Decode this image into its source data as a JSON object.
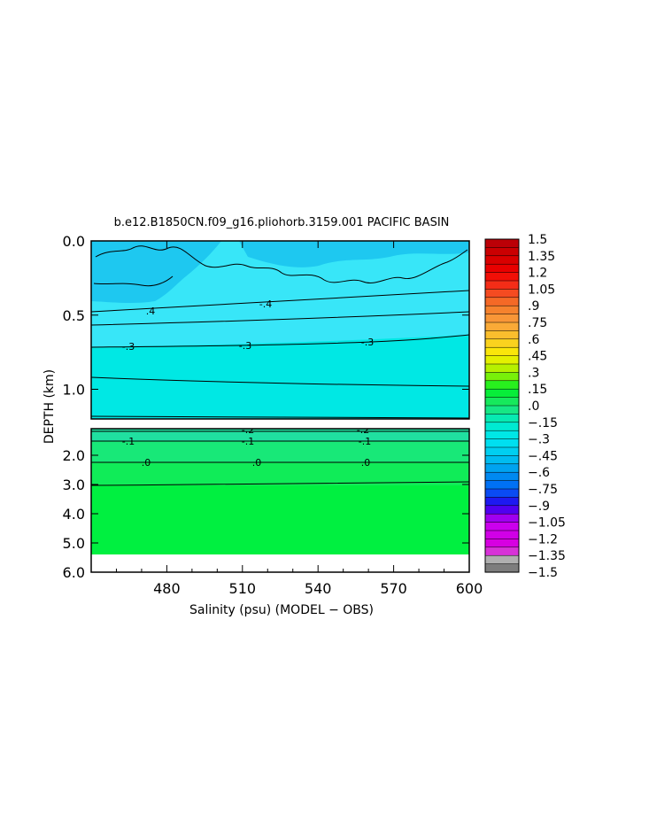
{
  "chart_data": {
    "type": "heatmap",
    "title": "b.e12.B1850CN.f09_g16.pliohorb.3159.001 PACIFIC BASIN",
    "xlabel": "Salinity (psu) (MODEL − OBS)",
    "ylabel": "DEPTH (km)",
    "x_ticks": [
      "480",
      "510",
      "540",
      "570",
      "600"
    ],
    "x_tick_values": [
      480,
      510,
      540,
      570,
      600
    ],
    "xlim": [
      450,
      600
    ],
    "upper_panel": {
      "ylim": [
        0.0,
        1.2
      ],
      "y_ticks": [
        "0.0",
        "0.5",
        "1.0"
      ],
      "y_tick_values": [
        0.0,
        0.5,
        1.0
      ]
    },
    "lower_panel": {
      "ylim": [
        1.2,
        6.0
      ],
      "y_ticks": [
        "2.0",
        "3.0",
        "4.0",
        "5.0",
        "6.0"
      ],
      "y_tick_values": [
        2.0,
        3.0,
        4.0,
        5.0,
        6.0
      ],
      "data_max_depth": 5.4
    },
    "contours": [
      {
        "label": ".4",
        "value": 0.4
      },
      {
        "label": "-.4",
        "value": -0.4
      },
      {
        "label": "-.3",
        "value": -0.3
      },
      {
        "label": "-.2",
        "value": -0.2
      },
      {
        "label": "-.1",
        "value": -0.1
      },
      {
        "label": ".0",
        "value": 0.0
      }
    ],
    "colorbar": {
      "min": -1.5,
      "max": 1.5,
      "labels": [
        "1.5",
        "1.35",
        "1.2",
        "1.05",
        ".9",
        ".75",
        ".6",
        ".45",
        ".3",
        ".15",
        ".0",
        "−.15",
        "−.3",
        "−.45",
        "−.6",
        "−.75",
        "−.9",
        "−1.05",
        "−1.2",
        "−1.35",
        "−1.5"
      ],
      "label_values": [
        1.5,
        1.35,
        1.2,
        1.05,
        0.9,
        0.75,
        0.6,
        0.45,
        0.3,
        0.15,
        0.0,
        -0.15,
        -0.3,
        -0.45,
        -0.6,
        -0.75,
        -0.9,
        -1.05,
        -1.2,
        -1.35,
        -1.5
      ]
    },
    "colors": {
      "surface_blue": "#1ec8f0",
      "upper_cyan": "#38e6f8",
      "mid_cyan": "#00e8e4",
      "aqua_green": "#20e0a0",
      "mint_green": "#18e878",
      "bright_green": "#00f040"
    },
    "grid": false
  }
}
